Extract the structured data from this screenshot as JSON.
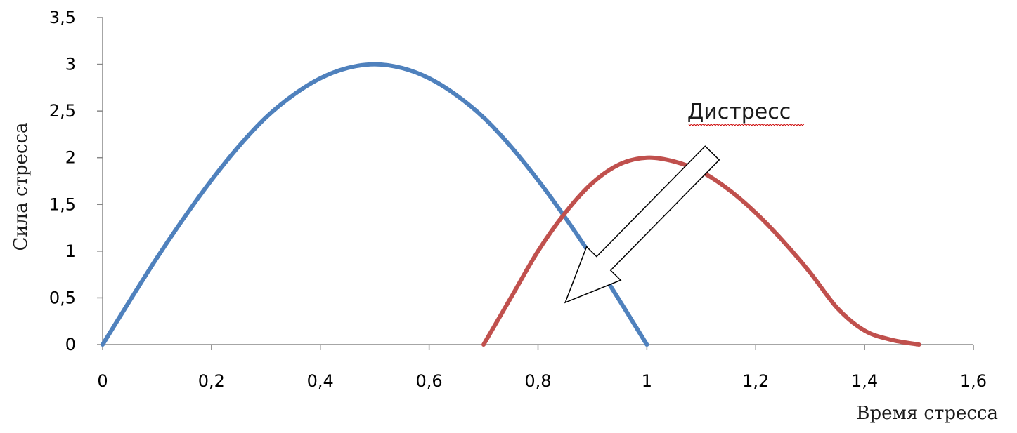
{
  "chart_data": {
    "type": "line",
    "title": "",
    "xlabel": "Время стресса",
    "ylabel": "Сила стресса",
    "xlim": [
      0,
      1.6
    ],
    "ylim": [
      0,
      3.5
    ],
    "x_ticks": [
      "0",
      "0,2",
      "0,4",
      "0,6",
      "0,8",
      "1",
      "1,2",
      "1,4",
      "1,6"
    ],
    "y_ticks": [
      "0",
      "0,5",
      "1",
      "1,5",
      "2",
      "2,5",
      "3",
      "3,5"
    ],
    "grid": false,
    "legend": "none",
    "series": [
      {
        "color": "#4F81BD",
        "x": [
          0,
          0.05,
          0.1,
          0.15,
          0.2,
          0.25,
          0.3,
          0.35,
          0.4,
          0.45,
          0.5,
          0.55,
          0.6,
          0.65,
          0.7,
          0.75,
          0.8,
          0.85,
          0.9,
          0.95,
          1.0
        ],
        "y": [
          0,
          0.47,
          0.93,
          1.36,
          1.76,
          2.12,
          2.43,
          2.67,
          2.85,
          2.96,
          3.0,
          2.96,
          2.85,
          2.67,
          2.43,
          2.12,
          1.76,
          1.36,
          0.93,
          0.47,
          0
        ]
      },
      {
        "color": "#C0504D",
        "x": [
          0.7,
          0.75,
          0.8,
          0.85,
          0.9,
          0.95,
          1.0,
          1.05,
          1.1,
          1.15,
          1.2,
          1.25,
          1.3,
          1.35,
          1.4,
          1.45,
          1.5
        ],
        "y": [
          0,
          0.5,
          1.0,
          1.41,
          1.73,
          1.93,
          2.0,
          1.96,
          1.85,
          1.66,
          1.41,
          1.11,
          0.77,
          0.39,
          0.15,
          0.05,
          0
        ]
      }
    ],
    "annotations": [
      {
        "text": "Дистресс",
        "anchor": [
          1.1,
          2.45
        ],
        "arrow_tail": [
          1.12,
          2.05
        ],
        "arrow_head": [
          0.85,
          0.45
        ]
      }
    ]
  },
  "colors": {
    "axis": "#888888",
    "arrow_stroke": "#000000",
    "arrow_fill": "#ffffff",
    "spellcheck_underline": "#cc0000"
  }
}
